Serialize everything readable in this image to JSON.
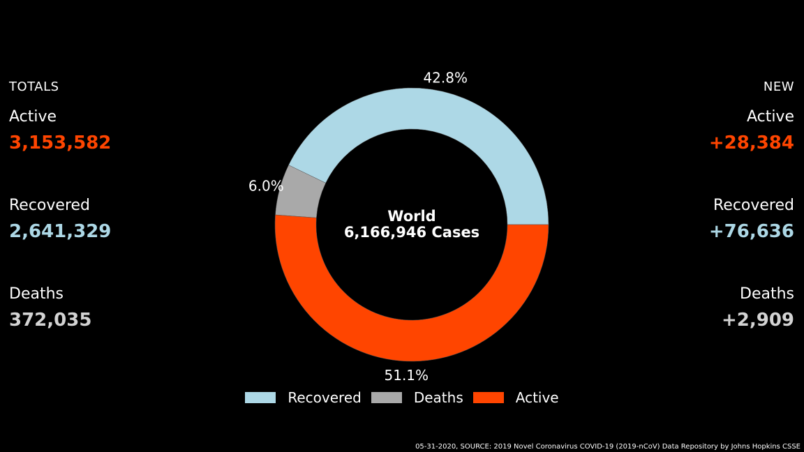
{
  "totals": {
    "title": "TOTALS",
    "active": {
      "label": "Active",
      "value": "3,153,582"
    },
    "recovered": {
      "label": "Recovered",
      "value": "2,641,329"
    },
    "deaths": {
      "label": "Deaths",
      "value": "372,035"
    }
  },
  "new": {
    "title": "NEW",
    "active": {
      "label": "Active",
      "value": "+28,384"
    },
    "recovered": {
      "label": "Recovered",
      "value": "+76,636"
    },
    "deaths": {
      "label": "Deaths",
      "value": "+2,909"
    }
  },
  "colors": {
    "active": "#ff4500",
    "recovered": "#add8e6",
    "deaths": "#a9a9a9",
    "deaths_text": "#d3d3d3"
  },
  "chart_data": {
    "type": "pie",
    "center_title": "World",
    "center_subtitle": "6,166,946 Cases",
    "slices": [
      {
        "name": "Recovered",
        "value": 2641329,
        "label": "42.8%",
        "color": "#add8e6"
      },
      {
        "name": "Deaths",
        "value": 372035,
        "label": "6.0%",
        "color": "#a9a9a9"
      },
      {
        "name": "Active",
        "value": 3153582,
        "label": "51.1%",
        "color": "#ff4500"
      }
    ],
    "legend": [
      "Recovered",
      "Deaths",
      "Active"
    ],
    "legend_position": "bottom-center"
  },
  "footer": {
    "source": "05-31-2020, SOURCE: 2019 Novel Coronavirus COVID-19 (2019-nCoV) Data Repository by Johns Hopkins CSSE"
  }
}
